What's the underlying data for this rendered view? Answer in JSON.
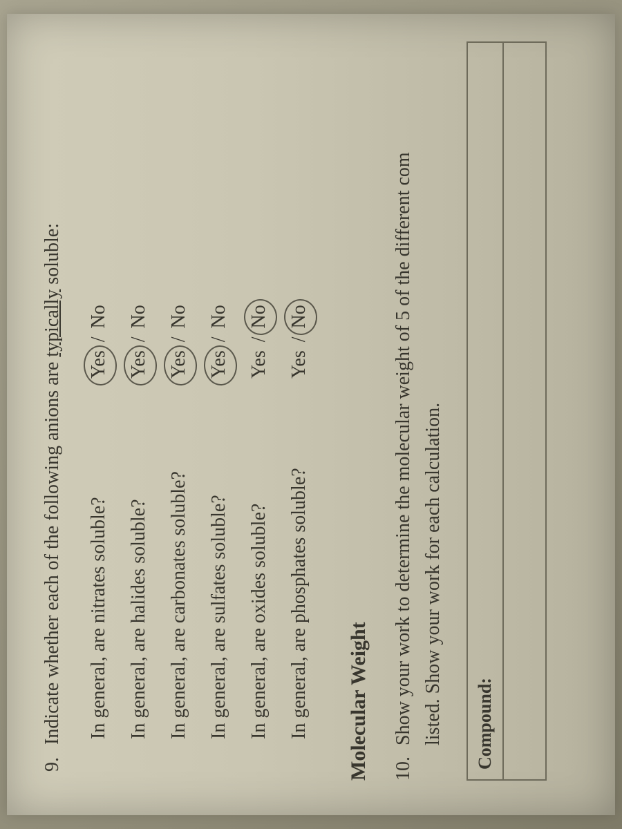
{
  "q9": {
    "number": "9.",
    "prompt_prefix": "Indicate whether each of the following anions are ",
    "prompt_underlined": "typically",
    "prompt_suffix": " soluble:",
    "yes": "Yes",
    "no": "No",
    "sep": "/",
    "items": [
      {
        "label": "In general, are nitrates soluble?",
        "circled": "yes"
      },
      {
        "label": "In general, are halides soluble?",
        "circled": "yes"
      },
      {
        "label": "In general, are carbonates soluble?",
        "circled": "yes"
      },
      {
        "label": "In general, are sulfates soluble?",
        "circled": "yes"
      },
      {
        "label": "In general, are oxides soluble?",
        "circled": "no"
      },
      {
        "label": "In general, are phosphates soluble?",
        "circled": "no"
      }
    ]
  },
  "section_heading": "Molecular Weight",
  "q10": {
    "number": "10.",
    "line1": "Show your work to determine the molecular weight of 5 of the different com",
    "line2": "listed. Show your work for each calculation."
  },
  "table": {
    "header": "Compound:"
  },
  "colors": {
    "text": "#38362e",
    "circle": "rgba(70,68,58,0.85)",
    "border": "#6d6a5a"
  }
}
